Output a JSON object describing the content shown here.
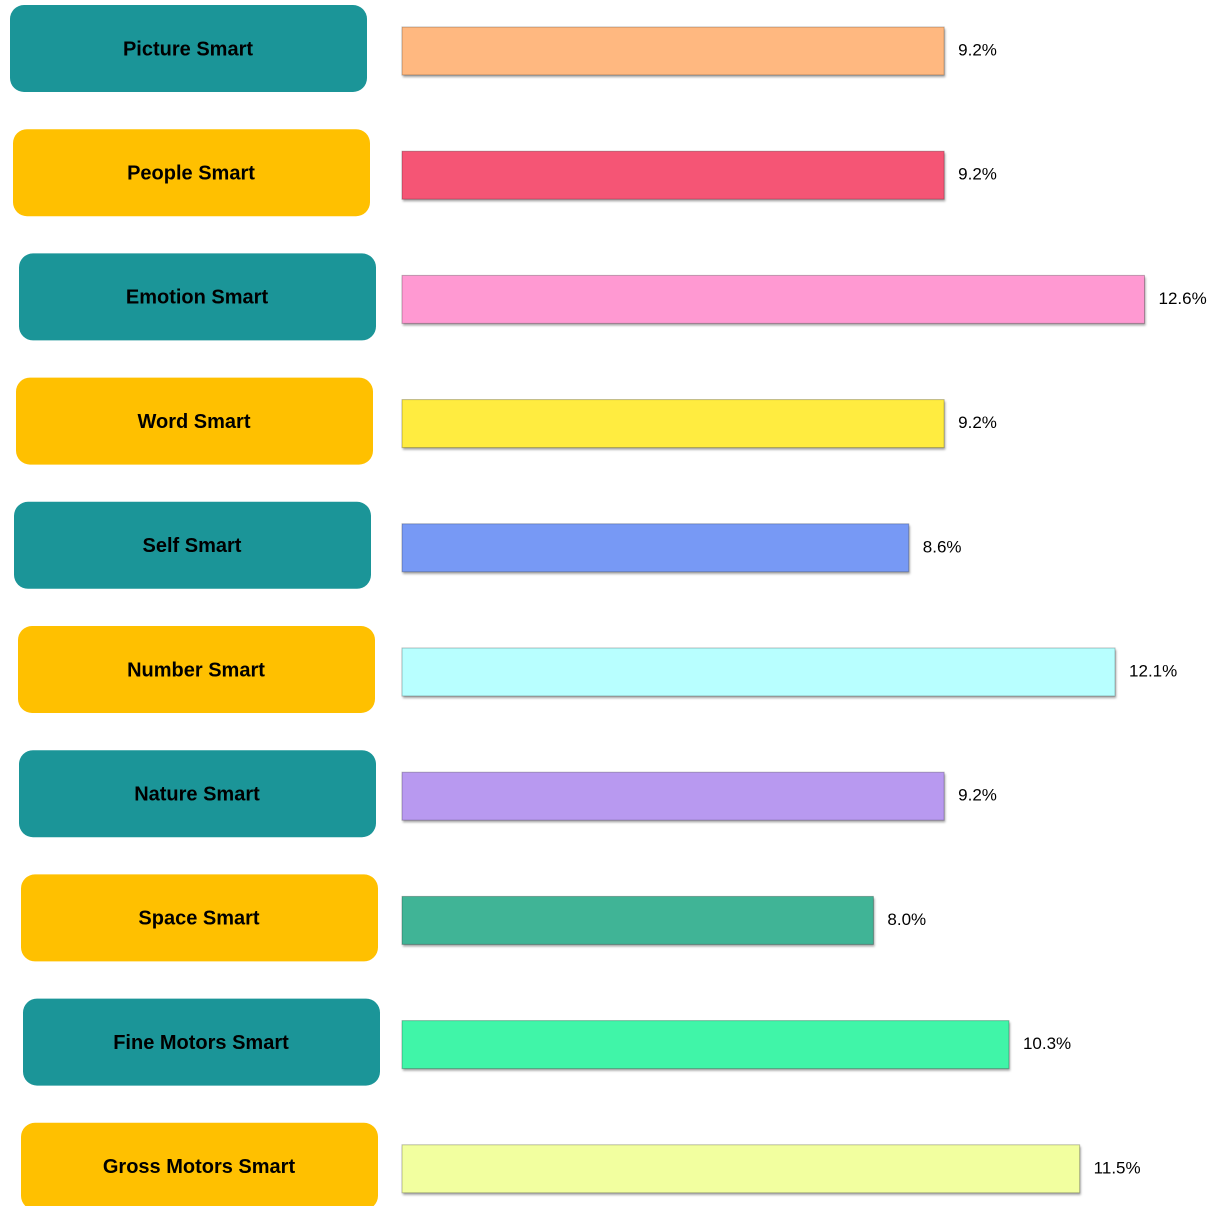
{
  "chart_data": {
    "type": "bar",
    "orientation": "horizontal",
    "categories": [
      "Picture Smart",
      "People Smart",
      "Emotion Smart",
      "Word Smart",
      "Self Smart",
      "Number Smart",
      "Nature Smart",
      "Space Smart",
      "Fine Motors Smart",
      "Gross Motors Smart"
    ],
    "values": [
      9.2,
      9.2,
      12.6,
      9.2,
      8.6,
      12.1,
      9.2,
      8.0,
      10.3,
      11.5
    ],
    "value_labels": [
      "9.2%",
      "9.2%",
      "12.6%",
      "9.2%",
      "8.6%",
      "12.1%",
      "9.2%",
      "8.0%",
      "10.3%",
      "11.5%"
    ],
    "colors": [
      "#ffb880",
      "#f55474",
      "#ff99d2",
      "#ffec40",
      "#7799f5",
      "#b8ffff",
      "#b899f0",
      "#40b496",
      "#40f5a8",
      "#f2ff9f"
    ],
    "label_box_colors": [
      "#1b9598",
      "#ffc000"
    ],
    "xlim": [
      0,
      14
    ]
  }
}
